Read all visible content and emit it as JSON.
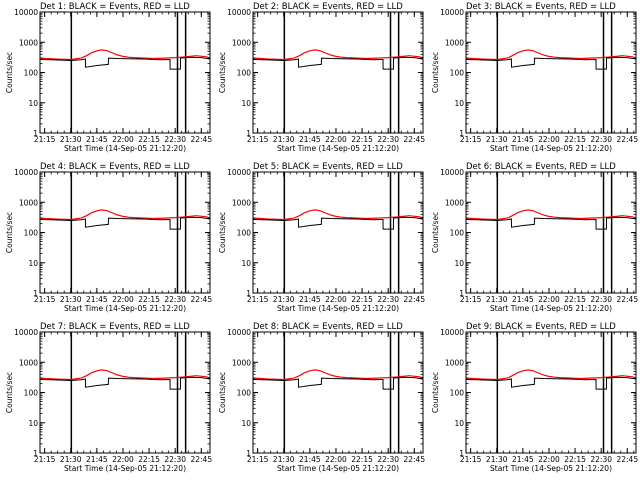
{
  "colors": {
    "events": "#000000",
    "lld": "#ff0000",
    "background": "#ffffff",
    "frame": "#000000"
  },
  "chart_data": [
    {
      "type": "line",
      "title": "Det 1: BLACK = Events, RED = LLD"
    },
    {
      "type": "line",
      "title": "Det 2: BLACK = Events, RED = LLD"
    },
    {
      "type": "line",
      "title": "Det 3: BLACK = Events, RED = LLD"
    },
    {
      "type": "line",
      "title": "Det 4: BLACK = Events, RED = LLD"
    },
    {
      "type": "line",
      "title": "Det 5: BLACK = Events, RED = LLD"
    },
    {
      "type": "line",
      "title": "Det 6: BLACK = Events, RED = LLD"
    },
    {
      "type": "line",
      "title": "Det 7: BLACK = Events, RED = LLD"
    },
    {
      "type": "line",
      "title": "Det 8: BLACK = Events, RED = LLD"
    },
    {
      "type": "line",
      "title": "Det 9: BLACK = Events, RED = LLD"
    }
  ],
  "shared": {
    "xlabel": "Start Time (14-Sep-05 21:12:20)",
    "ylabel": "Counts/sec",
    "xlim": [
      21.2056,
      22.8333
    ],
    "ylim": [
      1,
      10000
    ],
    "yscale": "log",
    "x_ticks": [
      21.25,
      21.5,
      21.75,
      22.0,
      22.25,
      22.5,
      22.75
    ],
    "x_tick_labels": [
      "21:15",
      "21:30",
      "21:45",
      "22:00",
      "22:15",
      "22:30",
      "22:45"
    ],
    "y_ticks": [
      1,
      10,
      100,
      1000,
      10000
    ],
    "y_tick_labels": [
      "1",
      "10",
      "100",
      "1000",
      "10000"
    ],
    "vertical_markers": [
      21.5056,
      22.5222,
      22.6
    ],
    "series": [
      {
        "name": "LLD",
        "color": "#ff0000",
        "x": [
          21.2056,
          21.35,
          21.5,
          21.6,
          21.65,
          21.7,
          21.75,
          21.8,
          21.85,
          21.9,
          21.95,
          22.0,
          22.05,
          22.1,
          22.2,
          22.3,
          22.4,
          22.5,
          22.6,
          22.7,
          22.8,
          22.8333
        ],
        "y": [
          300,
          280,
          270,
          300,
          360,
          450,
          520,
          560,
          520,
          440,
          380,
          340,
          320,
          310,
          300,
          290,
          300,
          310,
          330,
          360,
          330,
          300
        ]
      },
      {
        "name": "Events",
        "color": "#000000",
        "x": [
          21.2056,
          21.35,
          21.5,
          21.6,
          21.64,
          21.641,
          21.75,
          21.86,
          21.861,
          21.95,
          22.05,
          22.2,
          22.3,
          22.35,
          22.45,
          22.451,
          22.55,
          22.551,
          22.65,
          22.75,
          22.8333
        ],
        "y": [
          270,
          260,
          250,
          265,
          280,
          150,
          170,
          185,
          300,
          290,
          285,
          280,
          270,
          265,
          270,
          130,
          130,
          300,
          320,
          310,
          280
        ]
      }
    ]
  }
}
